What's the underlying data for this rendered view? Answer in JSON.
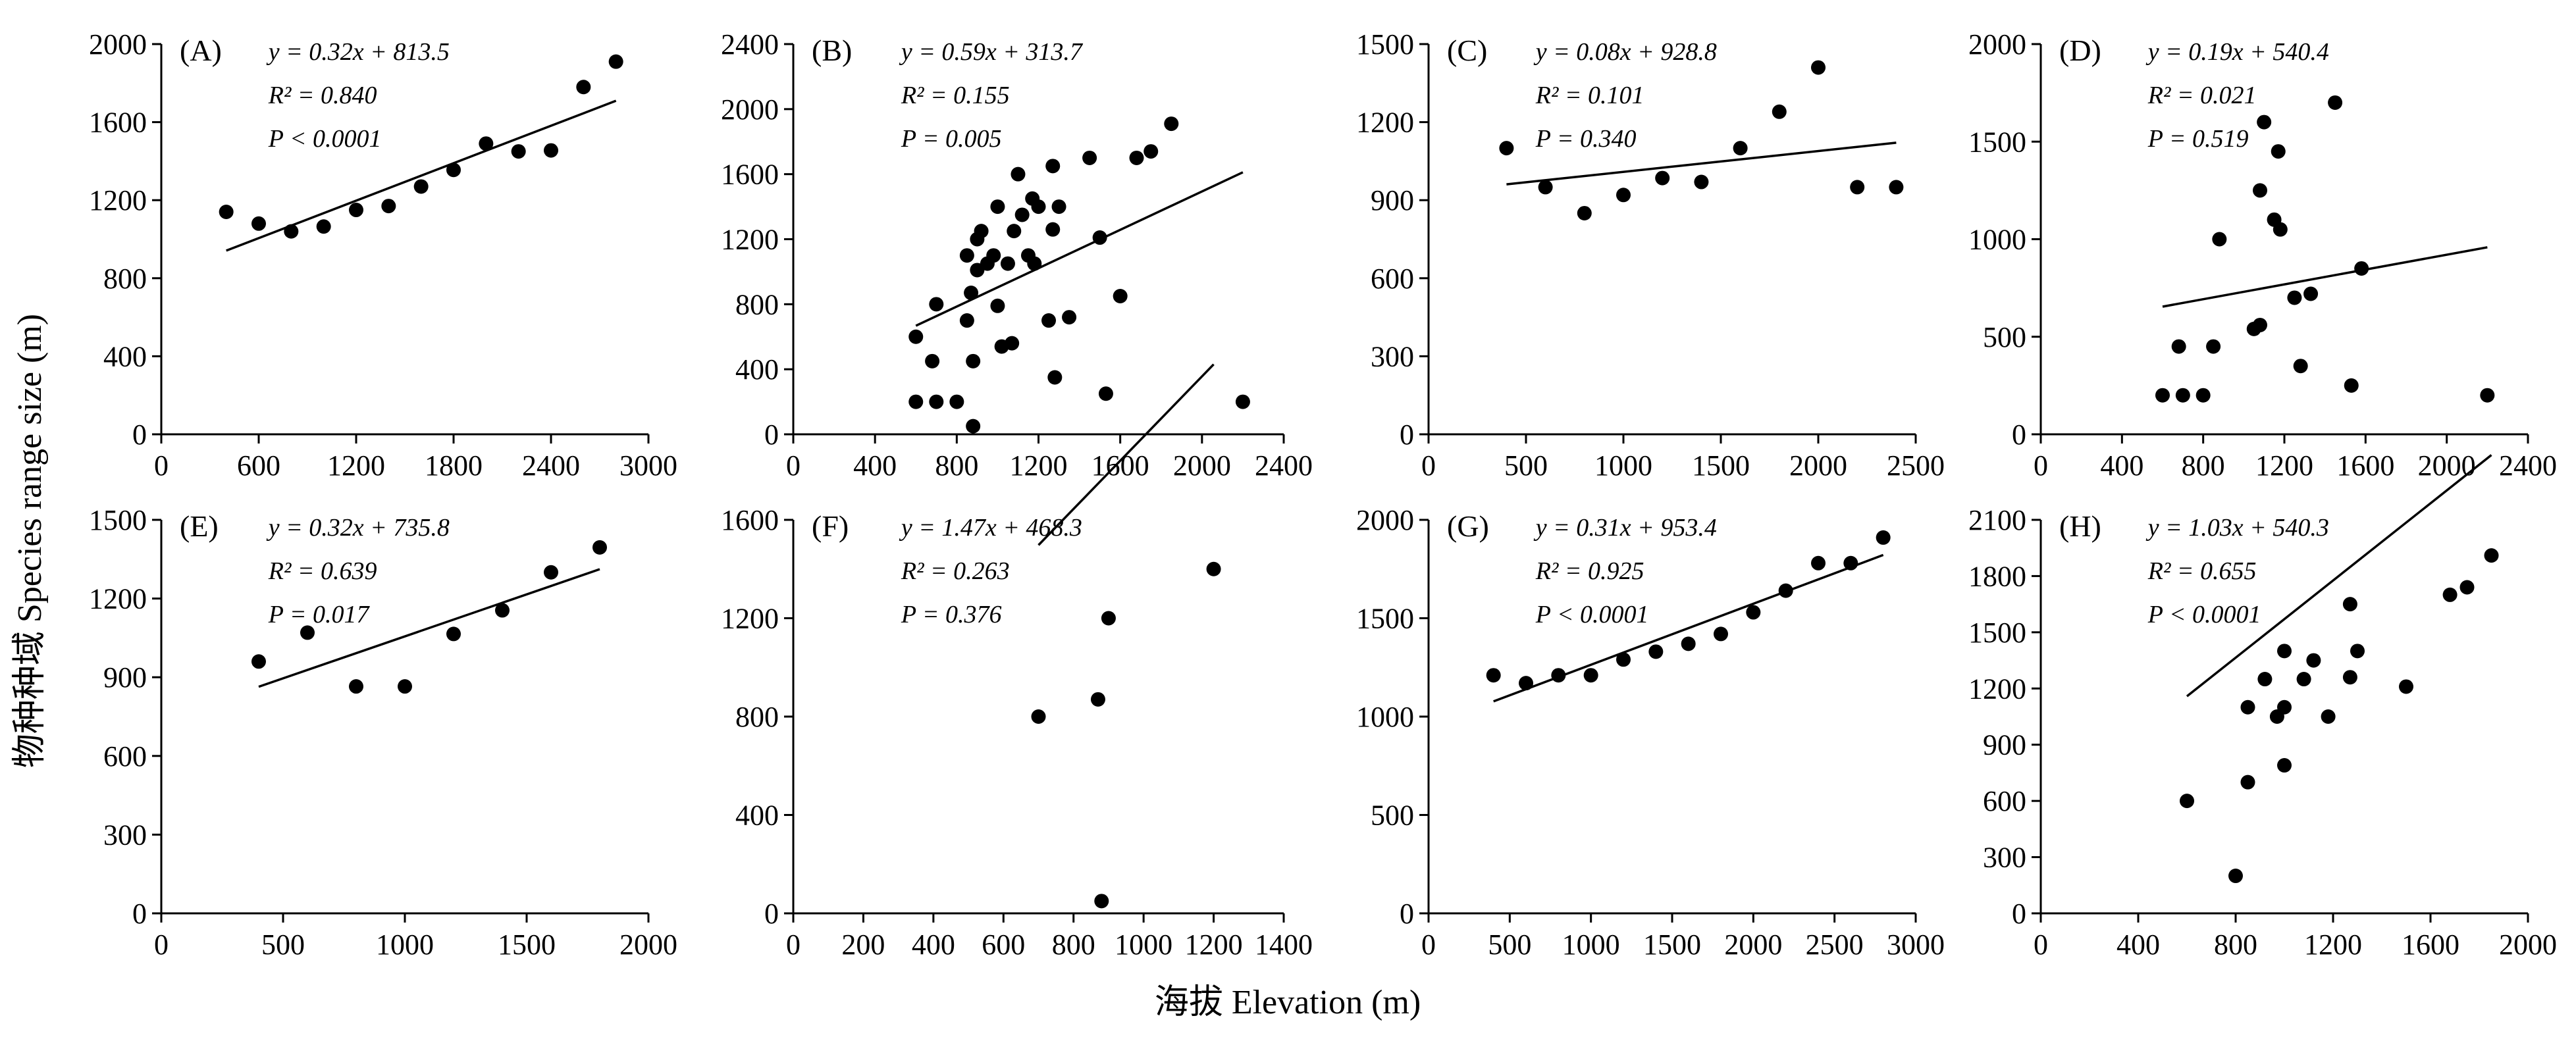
{
  "figure": {
    "shared_ylabel": "物种种域  Species range size (m)",
    "shared_xlabel": "海拔 Elevation (m)"
  },
  "chart_data": [
    {
      "panel": "(A)",
      "type": "scatter",
      "equation": "y = 0.32x + 813.5",
      "r2": "R² = 0.840",
      "p": "P < 0.0001",
      "xlim": [
        0,
        3000
      ],
      "ylim": [
        0,
        2000
      ],
      "xticks": [
        0,
        600,
        1200,
        1800,
        2400,
        3000
      ],
      "yticks": [
        0,
        400,
        800,
        1200,
        1600,
        2000
      ],
      "points": [
        [
          400,
          1140
        ],
        [
          600,
          1080
        ],
        [
          800,
          1040
        ],
        [
          1000,
          1065
        ],
        [
          1200,
          1150
        ],
        [
          1400,
          1170
        ],
        [
          1600,
          1270
        ],
        [
          1800,
          1355
        ],
        [
          2000,
          1490
        ],
        [
          2200,
          1450
        ],
        [
          2400,
          1455
        ],
        [
          2600,
          1780
        ],
        [
          2800,
          1910
        ]
      ],
      "fit": {
        "slope": 0.32,
        "intercept": 813.5,
        "x_range": [
          400,
          2800
        ]
      }
    },
    {
      "panel": "(B)",
      "type": "scatter",
      "equation": "y = 0.59x + 313.7",
      "r2": "R² = 0.155",
      "p": "P = 0.005",
      "xlim": [
        0,
        2400
      ],
      "ylim": [
        0,
        2400
      ],
      "xticks": [
        0,
        400,
        800,
        1200,
        1600,
        2000,
        2400
      ],
      "yticks": [
        0,
        400,
        800,
        1200,
        1600,
        2000,
        2400
      ],
      "points": [
        [
          600,
          600
        ],
        [
          600,
          200
        ],
        [
          680,
          450
        ],
        [
          700,
          800
        ],
        [
          700,
          200
        ],
        [
          800,
          200
        ],
        [
          850,
          700
        ],
        [
          850,
          1100
        ],
        [
          870,
          870
        ],
        [
          880,
          450
        ],
        [
          880,
          50
        ],
        [
          900,
          1200
        ],
        [
          900,
          1010
        ],
        [
          920,
          1250
        ],
        [
          950,
          1050
        ],
        [
          980,
          1100
        ],
        [
          1000,
          1400
        ],
        [
          1000,
          790
        ],
        [
          1020,
          540
        ],
        [
          1050,
          1050
        ],
        [
          1070,
          560
        ],
        [
          1080,
          1250
        ],
        [
          1100,
          1600
        ],
        [
          1120,
          1350
        ],
        [
          1150,
          1100
        ],
        [
          1170,
          1450
        ],
        [
          1180,
          1050
        ],
        [
          1200,
          1400
        ],
        [
          1250,
          700
        ],
        [
          1270,
          1260
        ],
        [
          1270,
          1650
        ],
        [
          1280,
          350
        ],
        [
          1300,
          1400
        ],
        [
          1350,
          720
        ],
        [
          1450,
          1700
        ],
        [
          1500,
          1210
        ],
        [
          1530,
          250
        ],
        [
          1600,
          850
        ],
        [
          1680,
          1700
        ],
        [
          1750,
          1740
        ],
        [
          1850,
          1910
        ],
        [
          2200,
          200
        ]
      ],
      "fit": {
        "slope": 0.59,
        "intercept": 313.7,
        "x_range": [
          600,
          2200
        ]
      }
    },
    {
      "panel": "(C)",
      "type": "scatter",
      "equation": "y = 0.08x + 928.8",
      "r2": "R² = 0.101",
      "p": "P = 0.340",
      "xlim": [
        0,
        2500
      ],
      "ylim": [
        0,
        1500
      ],
      "xticks": [
        0,
        500,
        1000,
        1500,
        2000,
        2500
      ],
      "yticks": [
        0,
        300,
        600,
        900,
        1200,
        1500
      ],
      "points": [
        [
          400,
          1100
        ],
        [
          600,
          950
        ],
        [
          800,
          850
        ],
        [
          1000,
          920
        ],
        [
          1200,
          985
        ],
        [
          1400,
          970
        ],
        [
          1600,
          1100
        ],
        [
          1800,
          1240
        ],
        [
          2000,
          1410
        ],
        [
          2200,
          950
        ],
        [
          2400,
          950
        ]
      ],
      "fit": {
        "slope": 0.08,
        "intercept": 928.8,
        "x_range": [
          400,
          2400
        ]
      }
    },
    {
      "panel": "(D)",
      "type": "scatter",
      "equation": "y = 0.19x + 540.4",
      "r2": "R² = 0.021",
      "p": "P = 0.519",
      "xlim": [
        0,
        2400
      ],
      "ylim": [
        0,
        2000
      ],
      "xticks": [
        0,
        400,
        800,
        1200,
        1600,
        2000,
        2400
      ],
      "yticks": [
        0,
        500,
        1000,
        1500,
        2000
      ],
      "points": [
        [
          600,
          200
        ],
        [
          680,
          450
        ],
        [
          700,
          200
        ],
        [
          800,
          200
        ],
        [
          850,
          450
        ],
        [
          880,
          1000
        ],
        [
          1050,
          540
        ],
        [
          1080,
          560
        ],
        [
          1080,
          1250
        ],
        [
          1100,
          1600
        ],
        [
          1150,
          1100
        ],
        [
          1170,
          1450
        ],
        [
          1180,
          1050
        ],
        [
          1250,
          700
        ],
        [
          1280,
          350
        ],
        [
          1330,
          720
        ],
        [
          1450,
          1700
        ],
        [
          1530,
          250
        ],
        [
          1580,
          850
        ],
        [
          2200,
          200
        ]
      ],
      "fit": {
        "slope": 0.19,
        "intercept": 540.4,
        "x_range": [
          600,
          2200
        ]
      }
    },
    {
      "panel": "(E)",
      "type": "scatter",
      "equation": "y = 0.32x + 735.8",
      "r2": "R² = 0.639",
      "p": "P = 0.017",
      "xlim": [
        0,
        2000
      ],
      "ylim": [
        0,
        1500
      ],
      "xticks": [
        0,
        500,
        1000,
        1500,
        2000
      ],
      "yticks": [
        0,
        300,
        600,
        900,
        1200,
        1500
      ],
      "points": [
        [
          400,
          960
        ],
        [
          600,
          1070
        ],
        [
          800,
          865
        ],
        [
          1000,
          865
        ],
        [
          1200,
          1065
        ],
        [
          1400,
          1155
        ],
        [
          1600,
          1300
        ],
        [
          1800,
          1395
        ]
      ],
      "fit": {
        "slope": 0.32,
        "intercept": 735.8,
        "x_range": [
          400,
          1800
        ]
      }
    },
    {
      "panel": "(F)",
      "type": "scatter",
      "equation": "y = 1.47x + 468.3",
      "r2": "R² = 0.263",
      "p": "P = 0.376",
      "xlim": [
        0,
        1400
      ],
      "ylim": [
        0,
        1600
      ],
      "xticks": [
        0,
        200,
        400,
        600,
        800,
        1000,
        1200,
        1400
      ],
      "yticks": [
        0,
        400,
        800,
        1200,
        1600
      ],
      "points": [
        [
          700,
          800
        ],
        [
          870,
          870
        ],
        [
          880,
          50
        ],
        [
          900,
          1200
        ],
        [
          1200,
          1400
        ]
      ],
      "fit": {
        "slope": 1.47,
        "intercept": 468.3,
        "x_range": [
          700,
          1200
        ]
      }
    },
    {
      "panel": "(G)",
      "type": "scatter",
      "equation": "y = 0.31x + 953.4",
      "r2": "R² = 0.925",
      "p": "P < 0.0001",
      "xlim": [
        0,
        3000
      ],
      "ylim": [
        0,
        2000
      ],
      "xticks": [
        0,
        500,
        1000,
        1500,
        2000,
        2500,
        3000
      ],
      "yticks": [
        0,
        500,
        1000,
        1500,
        2000
      ],
      "points": [
        [
          400,
          1210
        ],
        [
          600,
          1170
        ],
        [
          800,
          1210
        ],
        [
          1000,
          1210
        ],
        [
          1200,
          1290
        ],
        [
          1400,
          1330
        ],
        [
          1600,
          1370
        ],
        [
          1800,
          1420
        ],
        [
          2000,
          1530
        ],
        [
          2200,
          1640
        ],
        [
          2400,
          1780
        ],
        [
          2600,
          1780
        ],
        [
          2800,
          1910
        ]
      ],
      "fit": {
        "slope": 0.31,
        "intercept": 953.4,
        "x_range": [
          400,
          2800
        ]
      }
    },
    {
      "panel": "(H)",
      "type": "scatter",
      "equation": "y = 1.03x + 540.3",
      "r2": "R² = 0.655",
      "p": "P < 0.0001",
      "xlim": [
        0,
        2000
      ],
      "ylim": [
        0,
        2100
      ],
      "xticks": [
        0,
        400,
        800,
        1200,
        1600,
        2000
      ],
      "yticks": [
        0,
        300,
        600,
        900,
        1200,
        1500,
        1800,
        2100
      ],
      "points": [
        [
          600,
          600
        ],
        [
          800,
          200
        ],
        [
          850,
          1100
        ],
        [
          850,
          700
        ],
        [
          920,
          1250
        ],
        [
          970,
          1050
        ],
        [
          1000,
          1100
        ],
        [
          1000,
          1400
        ],
        [
          1000,
          790
        ],
        [
          1080,
          1250
        ],
        [
          1120,
          1350
        ],
        [
          1180,
          1050
        ],
        [
          1270,
          1260
        ],
        [
          1270,
          1650
        ],
        [
          1300,
          1400
        ],
        [
          1500,
          1210
        ],
        [
          1680,
          1700
        ],
        [
          1750,
          1740
        ],
        [
          1850,
          1910
        ]
      ],
      "fit": {
        "slope": 1.03,
        "intercept": 540.3,
        "x_range": [
          600,
          1850
        ]
      }
    }
  ]
}
